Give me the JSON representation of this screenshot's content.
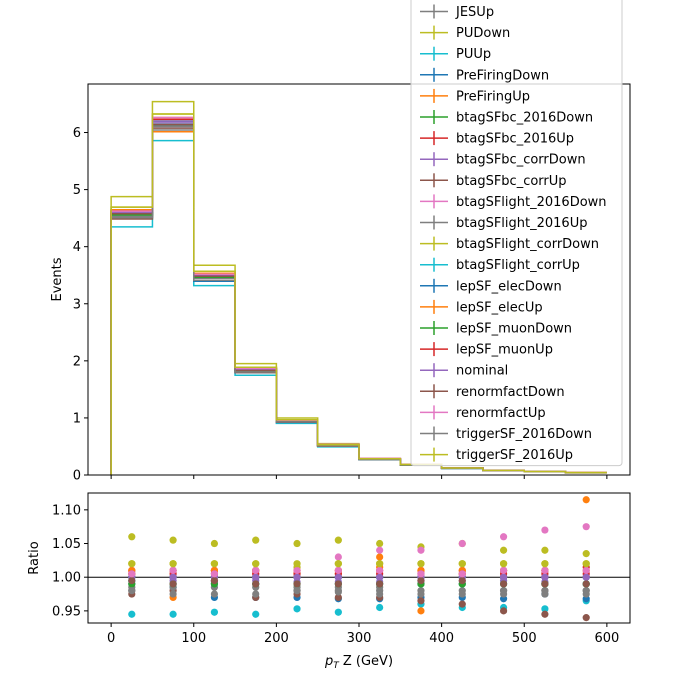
{
  "chart_data": [
    {
      "type": "line",
      "step": true,
      "xlabel": "",
      "ylabel": "Events",
      "xlim": [
        -28,
        628
      ],
      "ylim": [
        0,
        6.85
      ],
      "xticks": [
        0,
        100,
        200,
        300,
        400,
        500,
        600
      ],
      "yticks": [
        0,
        1,
        2,
        3,
        4,
        5,
        6
      ],
      "x_edges": [
        0,
        50,
        100,
        150,
        200,
        250,
        300,
        350,
        400,
        450,
        500,
        550,
        600
      ],
      "nominal_values": [
        4.6,
        6.2,
        3.5,
        1.85,
        0.95,
        0.52,
        0.28,
        0.18,
        0.12,
        0.08,
        0.06,
        0.04
      ],
      "legend_position": "top-right",
      "series": [
        {
          "name": "JESUp",
          "color": "#7f7f7f",
          "factors": [
            0.98,
            0.99,
            0.99,
            0.99,
            0.98,
            0.98,
            0.98,
            0.99,
            0.99,
            0.98,
            0.98,
            0.98
          ]
        },
        {
          "name": "PUDown",
          "color": "#bcbd22",
          "factors": [
            1.06,
            1.055,
            1.05,
            1.055,
            1.05,
            1.055,
            1.05,
            1.045,
            1.05,
            1.04,
            1.04,
            1.035
          ]
        },
        {
          "name": "PUUp",
          "color": "#17becf",
          "factors": [
            0.945,
            0.945,
            0.948,
            0.945,
            0.953,
            0.948,
            0.955,
            0.96,
            0.955,
            0.955,
            0.953,
            0.965
          ]
        },
        {
          "name": "PreFiringDown",
          "color": "#1f77b4",
          "factors": [
            0.99,
            0.985,
            0.97,
            0.97,
            0.97,
            0.968,
            0.968,
            0.97,
            0.97,
            0.968,
            0.975,
            0.968
          ]
        },
        {
          "name": "PreFiringUp",
          "color": "#ff7f0e",
          "factors": [
            1.005,
            0.97,
            1.01,
            1.01,
            1.005,
            1.005,
            1.03,
            0.95,
            1.005,
            1.0,
            1.01,
            1.115
          ]
        },
        {
          "name": "btagSFbc_2016Down",
          "color": "#2ca02c",
          "factors": [
            1.0,
            1.0,
            1.0,
            1.0,
            1.0,
            1.0,
            1.0,
            1.0,
            1.0,
            1.0,
            0.99,
            0.99
          ]
        },
        {
          "name": "btagSFbc_2016Up",
          "color": "#d62728",
          "factors": [
            1.01,
            1.01,
            1.01,
            1.01,
            1.01,
            1.01,
            1.01,
            1.01,
            1.01,
            1.01,
            1.01,
            1.015
          ]
        },
        {
          "name": "btagSFbc_corrDown",
          "color": "#9467bd",
          "factors": [
            0.995,
            0.995,
            0.993,
            0.995,
            0.993,
            0.993,
            0.993,
            0.995,
            0.995,
            0.995,
            0.993,
            0.99
          ]
        },
        {
          "name": "btagSFbc_corrUp",
          "color": "#8c564b",
          "factors": [
            0.975,
            0.98,
            0.995,
            0.97,
            0.975,
            0.97,
            0.97,
            0.965,
            0.96,
            0.95,
            0.945,
            0.94
          ]
        },
        {
          "name": "btagSFlight_2016Down",
          "color": "#e377c2",
          "factors": [
            1.01,
            1.01,
            1.01,
            1.005,
            1.01,
            1.03,
            1.04,
            1.04,
            1.05,
            1.06,
            1.07,
            1.075
          ]
        },
        {
          "name": "btagSFlight_2016Up",
          "color": "#7f7f7f",
          "factors": [
            0.985,
            0.985,
            0.985,
            0.985,
            0.985,
            0.985,
            0.985,
            0.98,
            0.98,
            0.98,
            0.98,
            0.98
          ]
        },
        {
          "name": "btagSFlight_corrDown",
          "color": "#bcbd22",
          "factors": [
            1.02,
            1.02,
            1.02,
            1.02,
            1.015,
            1.02,
            1.02,
            1.02,
            1.02,
            1.02,
            1.02,
            1.02
          ]
        },
        {
          "name": "btagSFlight_corrUp",
          "color": "#17becf",
          "factors": [
            0.995,
            0.99,
            0.99,
            0.99,
            0.99,
            0.99,
            0.99,
            0.99,
            0.99,
            0.99,
            0.99,
            0.99
          ]
        },
        {
          "name": "lepSF_elecDown",
          "color": "#1f77b4",
          "factors": [
            1.0,
            1.0,
            1.0,
            1.0,
            1.0,
            1.0,
            1.0,
            1.0,
            1.0,
            1.0,
            1.0,
            1.0
          ]
        },
        {
          "name": "lepSF_elecUp",
          "color": "#ff7f0e",
          "factors": [
            1.01,
            1.01,
            1.01,
            1.01,
            1.01,
            1.01,
            1.015,
            1.01,
            1.01,
            1.01,
            1.01,
            1.01
          ]
        },
        {
          "name": "lepSF_muonDown",
          "color": "#2ca02c",
          "factors": [
            0.99,
            0.99,
            0.99,
            0.99,
            0.99,
            0.99,
            0.99,
            0.99,
            0.99,
            0.99,
            0.99,
            0.99
          ]
        },
        {
          "name": "lepSF_muonUp",
          "color": "#d62728",
          "factors": [
            1.005,
            1.005,
            1.005,
            1.005,
            1.005,
            1.005,
            1.005,
            1.005,
            1.005,
            1.005,
            1.005,
            1.005
          ]
        },
        {
          "name": "nominal",
          "color": "#9467bd",
          "factors": [
            1.0,
            1.0,
            1.0,
            1.0,
            1.0,
            1.0,
            1.0,
            1.0,
            1.0,
            1.0,
            1.0,
            1.0
          ]
        },
        {
          "name": "renormfactDown",
          "color": "#8c564b",
          "factors": [
            0.995,
            0.99,
            0.995,
            0.99,
            0.99,
            0.99,
            0.99,
            0.995,
            0.995,
            0.99,
            0.99,
            0.99
          ]
        },
        {
          "name": "renormfactUp",
          "color": "#e377c2",
          "factors": [
            1.005,
            1.01,
            1.005,
            1.01,
            1.01,
            1.01,
            1.01,
            1.005,
            1.005,
            1.01,
            1.01,
            1.01
          ]
        },
        {
          "name": "triggerSF_2016Down",
          "color": "#7f7f7f",
          "factors": [
            0.98,
            0.975,
            0.975,
            0.975,
            0.98,
            0.978,
            0.975,
            0.975,
            0.975,
            0.975,
            0.975,
            0.975
          ]
        },
        {
          "name": "triggerSF_2016Up",
          "color": "#bcbd22",
          "factors": [
            1.02,
            1.02,
            1.02,
            1.02,
            1.02,
            1.02,
            1.02,
            1.02,
            1.02,
            1.02,
            1.02,
            1.02
          ]
        }
      ]
    },
    {
      "type": "scatter",
      "xlabel": "p_T Z (GeV)",
      "xlabel_main": "p",
      "xlabel_sub": "T",
      "xlabel_rest": " Z (GeV)",
      "ylabel": "Ratio",
      "xlim": [
        -28,
        628
      ],
      "ylim": [
        0.932,
        1.125
      ],
      "xticks": [
        0,
        100,
        200,
        300,
        400,
        500,
        600
      ],
      "yticks": [
        0.95,
        1.0,
        1.05,
        1.1
      ],
      "xtick_labels": [
        "0",
        "100",
        "200",
        "300",
        "400",
        "500",
        "600"
      ],
      "ytick_labels": [
        "0.95",
        "1.00",
        "1.05",
        "1.10"
      ],
      "x_centers": [
        25,
        75,
        125,
        175,
        225,
        275,
        325,
        375,
        425,
        475,
        525,
        575
      ],
      "reference_line": 1.0
    }
  ]
}
